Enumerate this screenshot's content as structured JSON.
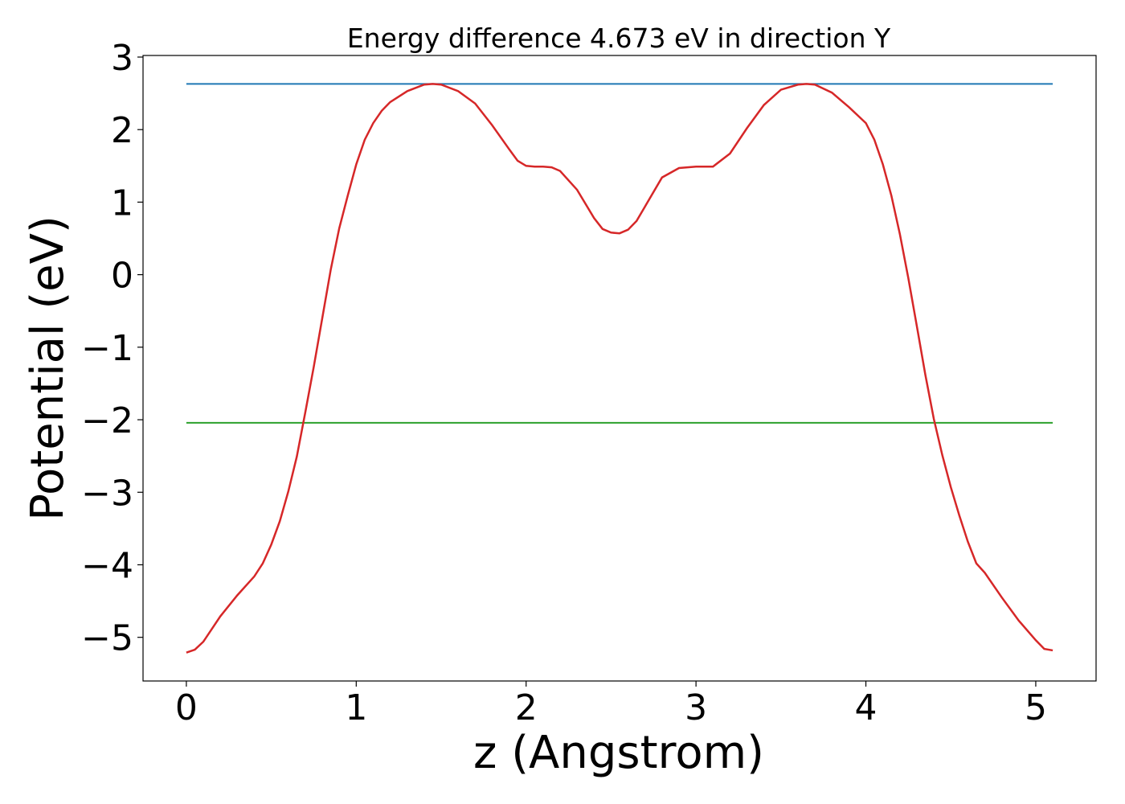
{
  "chart_data": {
    "type": "line",
    "title": "Energy difference 4.673 eV in direction Y",
    "xlabel": "z (Angstrom)",
    "ylabel": "Potential (eV)",
    "x": [
      0,
      0.05,
      0.1,
      0.2,
      0.3,
      0.4,
      0.45,
      0.5,
      0.55,
      0.6,
      0.65,
      0.7,
      0.75,
      0.8,
      0.85,
      0.9,
      0.95,
      1.0,
      1.05,
      1.1,
      1.15,
      1.2,
      1.3,
      1.4,
      1.45,
      1.5,
      1.6,
      1.7,
      1.8,
      1.9,
      1.95,
      2.0,
      2.05,
      2.1,
      2.15,
      2.2,
      2.3,
      2.4,
      2.45,
      2.5,
      2.55,
      2.6,
      2.65,
      2.7,
      2.8,
      2.9,
      3.0,
      3.1,
      3.2,
      3.3,
      3.4,
      3.5,
      3.6,
      3.65,
      3.7,
      3.8,
      3.9,
      4.0,
      4.05,
      4.1,
      4.15,
      4.2,
      4.25,
      4.3,
      4.35,
      4.4,
      4.45,
      4.5,
      4.55,
      4.6,
      4.65,
      4.7,
      4.8,
      4.9,
      5.0,
      5.05,
      5.1
    ],
    "series": [
      {
        "color": "#d62728",
        "values": [
          -5.21,
          -5.17,
          -5.06,
          -4.71,
          -4.42,
          -4.16,
          -3.98,
          -3.72,
          -3.4,
          -2.99,
          -2.51,
          -1.9,
          -1.27,
          -0.6,
          0.07,
          0.64,
          1.09,
          1.52,
          1.86,
          2.09,
          2.26,
          2.38,
          2.53,
          2.62,
          2.63,
          2.62,
          2.53,
          2.36,
          2.06,
          1.73,
          1.57,
          1.5,
          1.49,
          1.49,
          1.48,
          1.43,
          1.17,
          0.78,
          0.63,
          0.58,
          0.57,
          0.62,
          0.74,
          0.94,
          1.34,
          1.47,
          1.49,
          1.49,
          1.67,
          2.02,
          2.34,
          2.55,
          2.62,
          2.63,
          2.62,
          2.51,
          2.31,
          2.09,
          1.86,
          1.52,
          1.09,
          0.56,
          -0.05,
          -0.71,
          -1.38,
          -1.99,
          -2.49,
          -2.93,
          -3.32,
          -3.68,
          -3.98,
          -4.11,
          -4.45,
          -4.77,
          -5.04,
          -5.16,
          -5.18
        ]
      }
    ],
    "hlines": [
      {
        "y": 2.63,
        "xmin": 0,
        "xmax": 5.1,
        "color": "#1f77b4"
      },
      {
        "y": -2.043,
        "xmin": 0,
        "xmax": 5.1,
        "color": "#2ca02c"
      }
    ],
    "xlim": [
      -0.255,
      5.355
    ],
    "ylim": [
      -5.602,
      3.022
    ],
    "xticks": [
      0,
      1,
      2,
      3,
      4,
      5
    ],
    "yticks": [
      {
        "value": -5,
        "label": "−5"
      },
      {
        "value": -4,
        "label": "−4"
      },
      {
        "value": -3,
        "label": "−3"
      },
      {
        "value": -2,
        "label": "−2"
      },
      {
        "value": -1,
        "label": "−1"
      },
      0,
      1,
      2,
      3
    ]
  }
}
